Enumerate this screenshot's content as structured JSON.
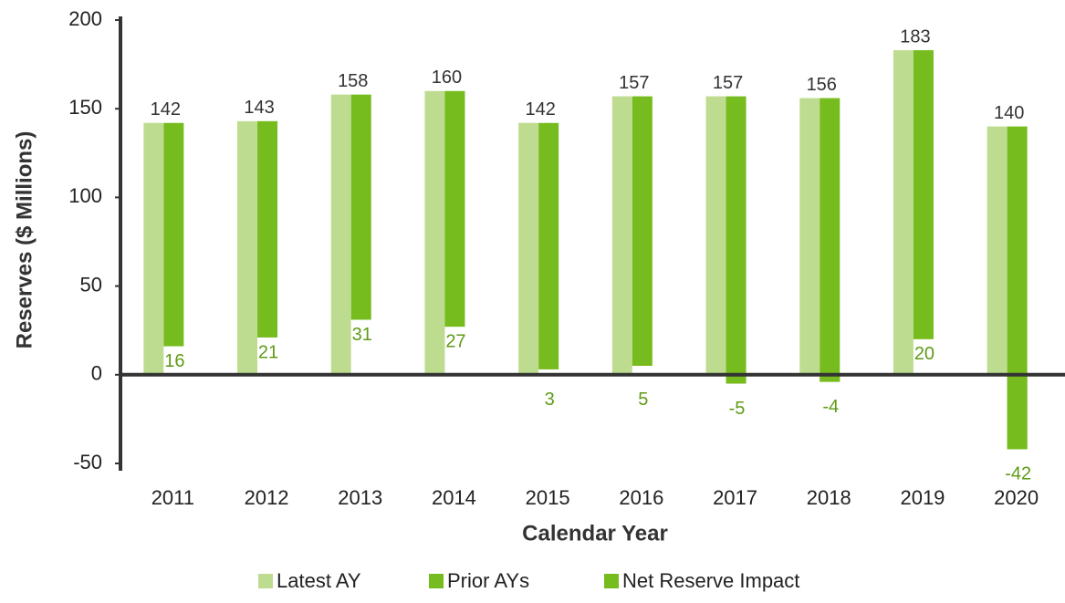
{
  "chart_data": {
    "type": "waterfall-bar",
    "ylabel": "Reserves ($ Millions)",
    "xlabel": "Calendar Year",
    "categories": [
      "2011",
      "2012",
      "2013",
      "2014",
      "2015",
      "2016",
      "2017",
      "2018",
      "2019",
      "2020"
    ],
    "series": [
      {
        "name": "Latest AY",
        "color": "#bddc8f",
        "values": [
          142,
          143,
          158,
          160,
          142,
          157,
          157,
          156,
          183,
          140
        ]
      },
      {
        "name": "Prior AYs",
        "color": "#77bc1f",
        "values": [
          -126,
          -122,
          -127,
          -133,
          -139,
          -152,
          -162,
          -160,
          -163,
          -182
        ]
      },
      {
        "name": "Net Reserve Impact",
        "color": "#77bc1f",
        "values": [
          16,
          21,
          31,
          27,
          3,
          5,
          -5,
          -4,
          20,
          -42
        ]
      }
    ],
    "ylim": [
      -50,
      200
    ],
    "yticks": [
      -50,
      0,
      50,
      100,
      150,
      200
    ],
    "legend": "bottom"
  }
}
